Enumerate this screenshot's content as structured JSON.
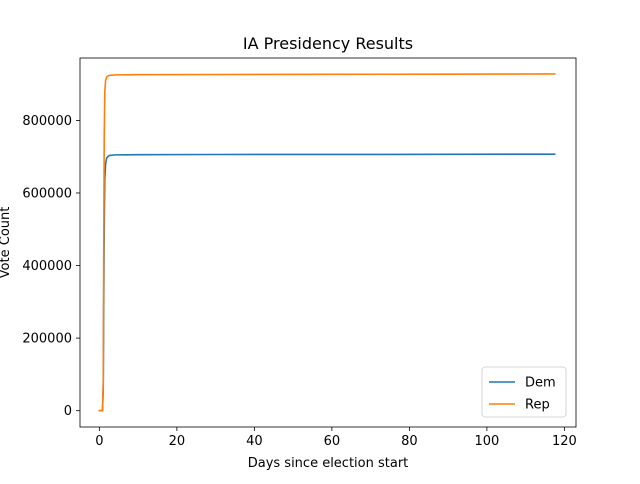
{
  "chart_data": {
    "type": "line",
    "title": "IA Presidency Results",
    "xlabel": "Days since election start",
    "ylabel": "Vote Count",
    "xlim": [
      -5,
      123
    ],
    "ylim": [
      -45000,
      972000
    ],
    "xticks": [
      0,
      20,
      40,
      60,
      80,
      100,
      120
    ],
    "xtick_labels": [
      "0",
      "20",
      "40",
      "60",
      "80",
      "100",
      "120"
    ],
    "yticks": [
      0,
      200000,
      400000,
      600000,
      800000
    ],
    "ytick_labels": [
      "0",
      "200000",
      "400000",
      "600000",
      "800000"
    ],
    "grid": false,
    "legend_position": "lower right",
    "series": [
      {
        "name": "Dem",
        "color": "#1f77b4",
        "x": [
          0,
          0.8,
          1.0,
          1.1,
          1.25,
          1.4,
          1.6,
          1.9,
          2.5,
          4,
          10,
          30,
          60,
          90,
          117.5
        ],
        "y": [
          0,
          0,
          60000,
          250000,
          500000,
          640000,
          680000,
          697000,
          703000,
          705000,
          705500,
          706000,
          706200,
          706500,
          707000
        ]
      },
      {
        "name": "Rep",
        "color": "#ff7f0e",
        "x": [
          0,
          0.8,
          1.0,
          1.1,
          1.25,
          1.4,
          1.6,
          1.9,
          2.5,
          4,
          10,
          30,
          60,
          90,
          117.5
        ],
        "y": [
          0,
          0,
          80000,
          400000,
          750000,
          880000,
          910000,
          920000,
          924000,
          925500,
          926000,
          926500,
          927000,
          927500,
          928000
        ]
      }
    ]
  }
}
